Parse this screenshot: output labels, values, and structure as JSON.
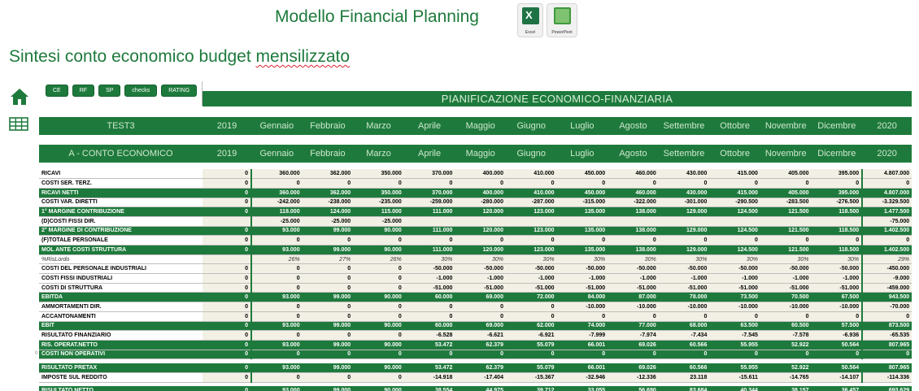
{
  "header": {
    "title": "Modello Financial Planning",
    "subtitle_plain": "Sintesi conto economico budget ",
    "subtitle_underlined": "mensilizzato",
    "excel_label": "Excel",
    "powerpivot_label": "PowerPivot"
  },
  "nav": {
    "home_icon": "home-icon",
    "table_icon": "table-icon"
  },
  "buttons": [
    "CE",
    "RF",
    "SP",
    "checks",
    "RATING"
  ],
  "banner": "PIANIFICAZIONE ECONOMICO-FINANZIARIA",
  "months": [
    "Gennaio",
    "Febbraio",
    "Marzo",
    "Aprile",
    "Maggio",
    "Giugno",
    "Luglio",
    "Agosto",
    "Settembre",
    "Ottobre",
    "Novembre",
    "Dicembre"
  ],
  "header_row1": {
    "label": "TEST3",
    "year_start": "2019",
    "year_end": "2020"
  },
  "header_row2": {
    "label": "A - CONTO ECONOMICO",
    "year_start": "2019",
    "year_end": "2020"
  },
  "rows": [
    {
      "label": "RICAVI",
      "type": "plain",
      "y": "0",
      "m": [
        "360.000",
        "362.000",
        "350.000",
        "370.000",
        "400.000",
        "410.000",
        "450.000",
        "460.000",
        "430.000",
        "415.000",
        "405.000",
        "395.000"
      ],
      "t": "4.807.000"
    },
    {
      "label": "COSTI SER. TERZ.",
      "type": "plain",
      "y": "0",
      "m": [
        "0",
        "0",
        "0",
        "0",
        "0",
        "0",
        "0",
        "0",
        "0",
        "0",
        "0",
        "0"
      ],
      "t": "0"
    },
    {
      "label": "RICAVI NETTI",
      "type": "green",
      "y": "0",
      "m": [
        "360.000",
        "362.000",
        "350.000",
        "370.000",
        "400.000",
        "410.000",
        "450.000",
        "460.000",
        "430.000",
        "415.000",
        "405.000",
        "395.000"
      ],
      "t": "4.807.000"
    },
    {
      "label": "COSTI VAR. DIRETTI",
      "type": "plain",
      "y": "0",
      "m": [
        "-242.000",
        "-238.000",
        "-235.000",
        "-259.000",
        "-280.000",
        "-287.000",
        "-315.000",
        "-322.000",
        "-301.000",
        "-290.500",
        "-283.500",
        "-276.500"
      ],
      "t": "-3.329.500"
    },
    {
      "label": "1° MARGINE CONTRIBUZIONE",
      "type": "green",
      "y": "0",
      "m": [
        "118.000",
        "124.000",
        "115.000",
        "111.000",
        "120.000",
        "123.000",
        "135.000",
        "138.000",
        "129.000",
        "124.500",
        "121.500",
        "118.500"
      ],
      "t": "1.477.500"
    },
    {
      "label": "(D)COSTI FISSI DIR.",
      "type": "plain",
      "y": "",
      "m": [
        "-25.000",
        "-25.000",
        "-25.000",
        "",
        "",
        "",
        "",
        "",
        "",
        "",
        "",
        ""
      ],
      "t": "-75.000"
    },
    {
      "label": "2° MARGINE DI CONTRIBUZIONE",
      "type": "green",
      "y": "0",
      "m": [
        "93.000",
        "99.000",
        "90.000",
        "111.000",
        "120.000",
        "123.000",
        "135.000",
        "138.000",
        "129.000",
        "124.500",
        "121.500",
        "118.500"
      ],
      "t": "1.402.500"
    },
    {
      "label": "(F)TOTALE PERSONALE",
      "type": "plain",
      "y": "0",
      "m": [
        "0",
        "0",
        "0",
        "0",
        "0",
        "0",
        "0",
        "0",
        "0",
        "0",
        "0",
        "0"
      ],
      "t": "0"
    },
    {
      "label": "MOL ANTE COSTI STRUTTURA",
      "type": "green",
      "y": "0",
      "m": [
        "93.000",
        "99.000",
        "90.000",
        "111.000",
        "120.000",
        "123.000",
        "135.000",
        "138.000",
        "129.000",
        "124.500",
        "121.500",
        "118.500"
      ],
      "t": "1.402.500"
    },
    {
      "label": "%RisLordo",
      "type": "light",
      "y": "",
      "m": [
        "26%",
        "27%",
        "26%",
        "30%",
        "30%",
        "30%",
        "30%",
        "30%",
        "30%",
        "30%",
        "30%",
        "30%"
      ],
      "t": "29%"
    },
    {
      "label": "COSTI DEL PERSONALE INDUSTRIALI",
      "type": "plain",
      "y": "0",
      "m": [
        "0",
        "0",
        "0",
        "-50.000",
        "-50.000",
        "-50.000",
        "-50.000",
        "-50.000",
        "-50.000",
        "-50.000",
        "-50.000",
        "-50.000"
      ],
      "t": "-450.000"
    },
    {
      "label": "COSTI FISSI INDUSTRIALI",
      "type": "plain",
      "y": "0",
      "m": [
        "0",
        "0",
        "0",
        "-1.000",
        "-1.000",
        "-1.000",
        "-1.000",
        "-1.000",
        "-1.000",
        "-1.000",
        "-1.000",
        "-1.000"
      ],
      "t": "-9.000"
    },
    {
      "label": "COSTI DI STRUTTURA",
      "type": "plain",
      "y": "0",
      "m": [
        "0",
        "0",
        "0",
        "-51.000",
        "-51.000",
        "-51.000",
        "-51.000",
        "-51.000",
        "-51.000",
        "-51.000",
        "-51.000",
        "-51.000"
      ],
      "t": "-459.000"
    },
    {
      "label": "EBITDA",
      "type": "green",
      "y": "0",
      "m": [
        "93.000",
        "99.000",
        "90.000",
        "60.000",
        "69.000",
        "72.000",
        "84.000",
        "87.000",
        "78.000",
        "73.500",
        "70.500",
        "67.500"
      ],
      "t": "943.500"
    },
    {
      "label": "AMMORTAMENTI DIR.",
      "type": "plain",
      "y": "0",
      "m": [
        "0",
        "0",
        "0",
        "0",
        "0",
        "0",
        "-10.000",
        "-10.000",
        "-10.000",
        "-10.000",
        "-10.000",
        "-10.000"
      ],
      "t": "-70.000"
    },
    {
      "label": "ACCANTONAMENTI",
      "type": "plain",
      "y": "0",
      "m": [
        "0",
        "0",
        "0",
        "0",
        "0",
        "0",
        "0",
        "0",
        "0",
        "0",
        "0",
        "0"
      ],
      "t": "0"
    },
    {
      "label": "EBIT",
      "type": "green",
      "y": "0",
      "m": [
        "93.000",
        "99.000",
        "90.000",
        "60.000",
        "69.000",
        "62.000",
        "74.000",
        "77.000",
        "68.000",
        "63.500",
        "60.500",
        "57.500"
      ],
      "t": "873.500"
    },
    {
      "label": "RISULTATO FINANZIARIO",
      "type": "plain",
      "y": "0",
      "m": [
        "0",
        "0",
        "0",
        "-6.528",
        "-6.621",
        "-6.921",
        "-7.999",
        "-7.974",
        "-7.434",
        "-7.545",
        "-7.578",
        "-6.936"
      ],
      "t": "-65.535"
    },
    {
      "label": "RIS. OPERAT.NETTO",
      "type": "green",
      "y": "0",
      "m": [
        "93.000",
        "99.000",
        "90.000",
        "53.472",
        "62.379",
        "55.079",
        "66.001",
        "69.026",
        "60.566",
        "55.955",
        "52.922",
        "50.564"
      ],
      "t": "807.965"
    },
    {
      "label": "COSTI NON OPERATIVI",
      "type": "green",
      "y": "0",
      "m": [
        "0",
        "0",
        "0",
        "0",
        "0",
        "0",
        "0",
        "0",
        "0",
        "0",
        "0",
        "0"
      ],
      "t": "0"
    },
    {
      "label": "",
      "type": "gap"
    },
    {
      "label": "RISULTATO PRETAX",
      "type": "green",
      "y": "0",
      "m": [
        "93.000",
        "99.000",
        "90.000",
        "53.472",
        "62.379",
        "55.079",
        "66.001",
        "69.026",
        "60.566",
        "55.955",
        "52.922",
        "50.564"
      ],
      "t": "807.965"
    },
    {
      "label": "IMPOSTE SUL REDDITO",
      "type": "plain",
      "y": "0",
      "m": [
        "0",
        "0",
        "0",
        "-14.918",
        "-17.404",
        "-15.367",
        "-32.946",
        "-12.336",
        "23.118",
        "-15.611",
        "-14.765",
        "-14.107"
      ],
      "t": "-114.336"
    },
    {
      "label": "",
      "type": "gap"
    },
    {
      "label": "RISULTATO NETTO",
      "type": "green",
      "y": "0",
      "m": [
        "93.000",
        "99.000",
        "90.000",
        "38.554",
        "44.975",
        "39.712",
        "33.055",
        "56.690",
        "83.684",
        "40.344",
        "38.157",
        "36.457"
      ],
      "t": "693.629"
    }
  ],
  "row_marker": "0"
}
